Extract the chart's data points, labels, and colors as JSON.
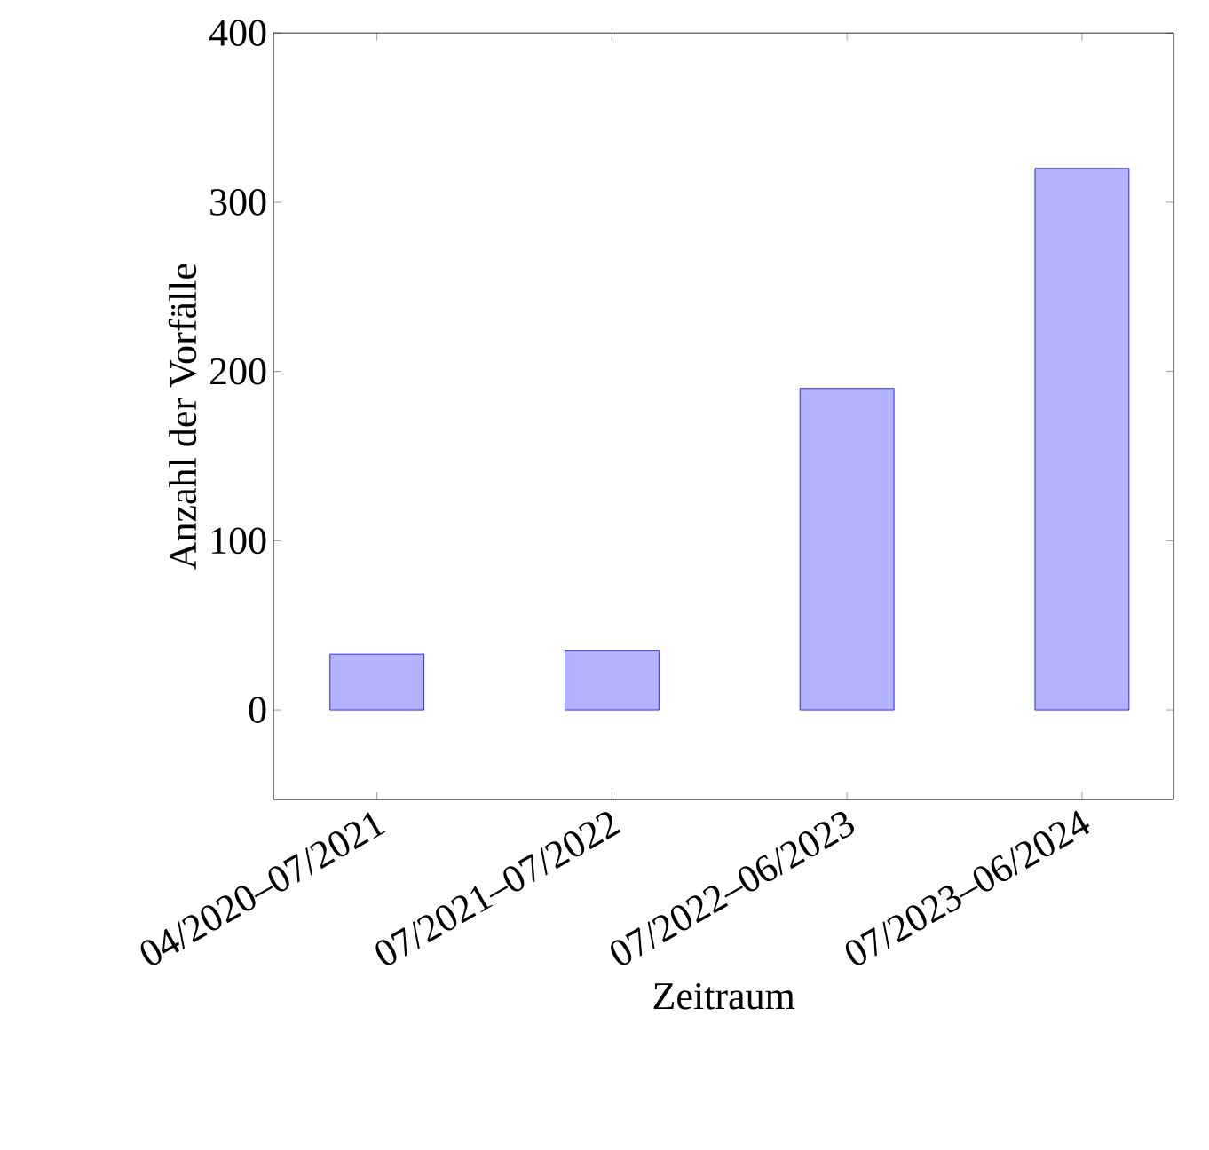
{
  "chart_data": {
    "type": "bar",
    "xlabel": "Zeitraum",
    "ylabel": "Anzahl der Vorfälle",
    "categories": [
      "04/2020–07/2021",
      "07/2021–07/2022",
      "07/2022–06/2023",
      "07/2023–06/2024"
    ],
    "values": [
      33,
      35,
      190,
      320
    ],
    "color": "#b3b3ff",
    "ylim": [
      -53,
      400
    ],
    "yticks": [
      0,
      100,
      200,
      300,
      400
    ]
  }
}
